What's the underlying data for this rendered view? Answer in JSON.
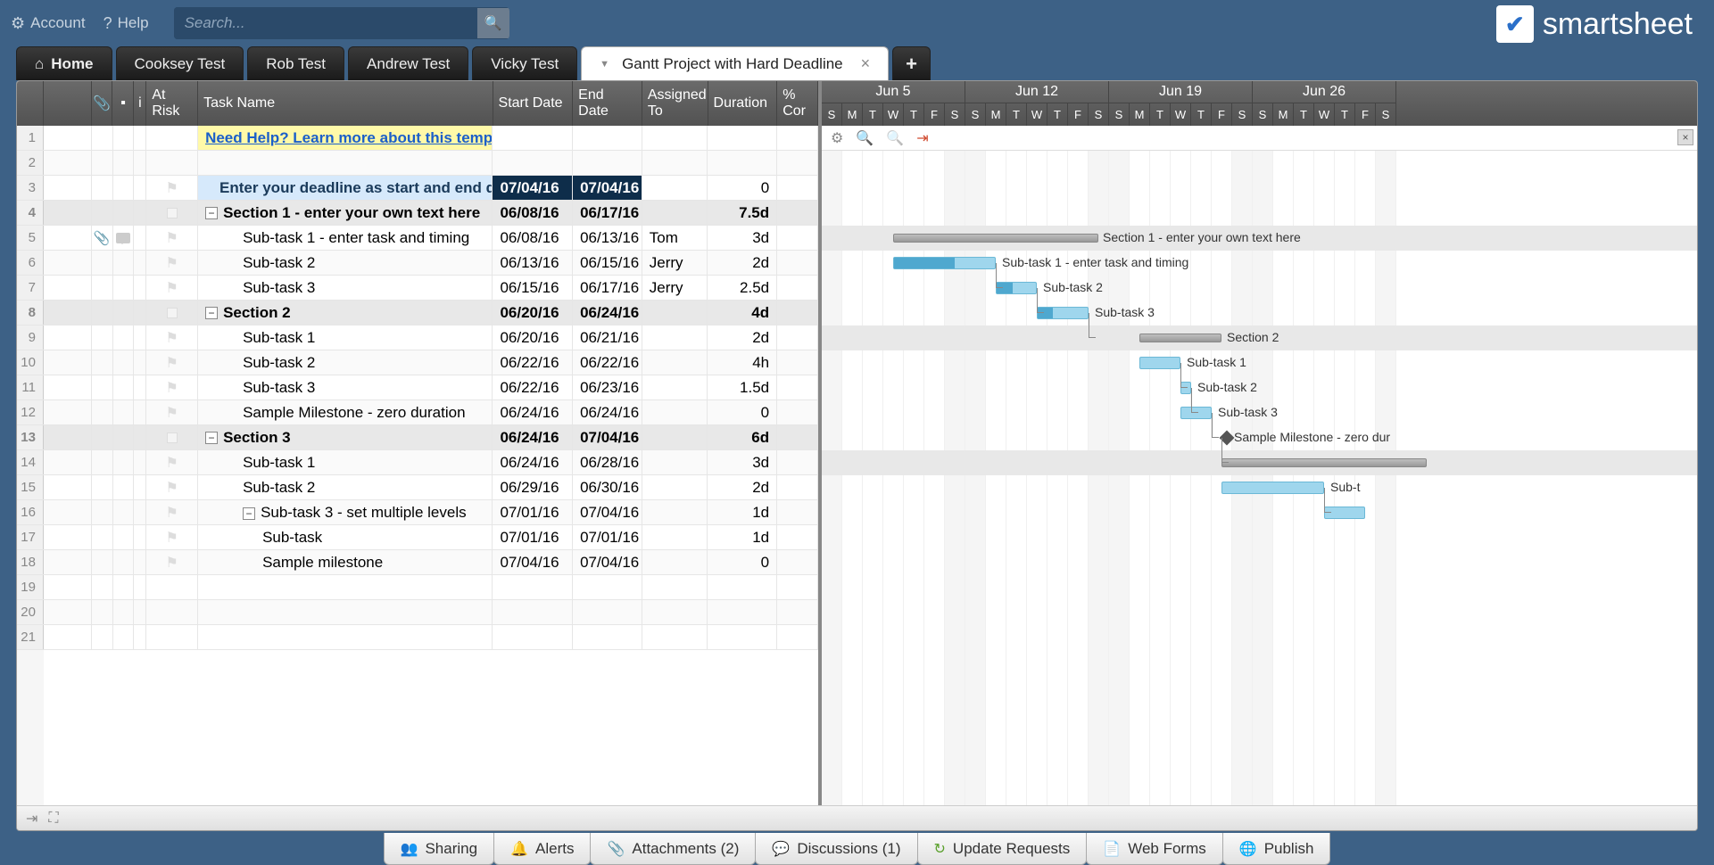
{
  "topbar": {
    "account": "Account",
    "help": "Help",
    "searchPlaceholder": "Search..."
  },
  "logo": {
    "text": "smartsheet"
  },
  "tabs": {
    "home": "Home",
    "items": [
      "Cooksey Test",
      "Rob Test",
      "Andrew Test",
      "Vicky Test"
    ],
    "active": "Gantt Project with Hard Deadline"
  },
  "columns": {
    "rowAction": "",
    "clip": "",
    "comment": "",
    "info": "i",
    "atRisk": "At Risk",
    "taskName": "Task Name",
    "startDate": "Start Date",
    "endDate": "End Date",
    "assignedTo": "Assigned To",
    "duration": "Duration",
    "complete": "% Cor"
  },
  "columnWidths": {
    "rownum": 30,
    "action": 54,
    "clip": 24,
    "comment": 24,
    "info": 14,
    "atRisk": 58,
    "taskName": 332,
    "startDate": 90,
    "endDate": 78,
    "assignedTo": 74,
    "duration": 78,
    "complete": 46
  },
  "helpRow": {
    "label": "Need Help? Learn more about this template."
  },
  "deadlineRow": {
    "label": "Enter your deadline as start and end date:",
    "start": "07/04/16",
    "end": "07/04/16",
    "duration": "0"
  },
  "rows": [
    {
      "n": 1,
      "type": "help"
    },
    {
      "n": 2,
      "type": "blank"
    },
    {
      "n": 3,
      "type": "deadline"
    },
    {
      "n": 4,
      "type": "section",
      "indent": 0,
      "task": "Section 1 - enter your own text here",
      "start": "06/08/16",
      "end": "06/17/16",
      "duration": "7.5d",
      "ganttLeft": 80,
      "ganttWidth": 230,
      "label": "Section 1 - enter your own text here",
      "labelLeft": 315
    },
    {
      "n": 5,
      "type": "task",
      "indent": 1,
      "task": "Sub-task 1 - enter task and timing",
      "start": "06/08/16",
      "end": "06/13/16",
      "assigned": "Tom",
      "duration": "3d",
      "hasClip": true,
      "hasComment": true,
      "ganttLeft": 80,
      "ganttWidth": 115,
      "prog": 60,
      "label": "Sub-task 1 - enter task and timing",
      "labelLeft": 202
    },
    {
      "n": 6,
      "type": "task",
      "indent": 1,
      "task": "Sub-task 2",
      "start": "06/13/16",
      "end": "06/15/16",
      "assigned": "Jerry",
      "duration": "2d",
      "ganttLeft": 195,
      "ganttWidth": 46,
      "prog": 40,
      "label": "Sub-task 2",
      "labelLeft": 248,
      "depFrom": 195
    },
    {
      "n": 7,
      "type": "task",
      "indent": 1,
      "task": "Sub-task 3",
      "start": "06/15/16",
      "end": "06/17/16",
      "assigned": "Jerry",
      "duration": "2.5d",
      "ganttLeft": 241,
      "ganttWidth": 58,
      "prog": 30,
      "label": "Sub-task 3",
      "labelLeft": 306,
      "depFrom": 241
    },
    {
      "n": 8,
      "type": "section",
      "indent": 0,
      "task": "Section 2",
      "start": "06/20/16",
      "end": "06/24/16",
      "duration": "4d",
      "ganttLeft": 356,
      "ganttWidth": 92,
      "label": "Section 2",
      "labelLeft": 454,
      "depFrom": 299
    },
    {
      "n": 9,
      "type": "task",
      "indent": 1,
      "task": "Sub-task 1",
      "start": "06/20/16",
      "end": "06/21/16",
      "duration": "2d",
      "ganttLeft": 356,
      "ganttWidth": 46,
      "label": "Sub-task 1",
      "labelLeft": 409
    },
    {
      "n": 10,
      "type": "task",
      "indent": 1,
      "task": "Sub-task 2",
      "start": "06/22/16",
      "end": "06/22/16",
      "duration": "4h",
      "ganttLeft": 402,
      "ganttWidth": 12,
      "label": "Sub-task 2",
      "labelLeft": 421,
      "depFrom": 402
    },
    {
      "n": 11,
      "type": "task",
      "indent": 1,
      "task": "Sub-task 3",
      "start": "06/22/16",
      "end": "06/23/16",
      "duration": "1.5d",
      "ganttLeft": 402,
      "ganttWidth": 35,
      "label": "Sub-task 3",
      "labelLeft": 444,
      "depFrom": 414
    },
    {
      "n": 12,
      "type": "task",
      "indent": 1,
      "task": "Sample Milestone - zero duration",
      "start": "06/24/16",
      "end": "06/24/16",
      "duration": "0",
      "milestone": true,
      "ganttLeft": 448,
      "label": "Sample Milestone - zero dur",
      "labelLeft": 462,
      "depFrom": 437
    },
    {
      "n": 13,
      "type": "section",
      "indent": 0,
      "task": "Section 3",
      "start": "06/24/16",
      "end": "07/04/16",
      "duration": "6d",
      "ganttLeft": 448,
      "ganttWidth": 230,
      "depFrom": 448
    },
    {
      "n": 14,
      "type": "task",
      "indent": 1,
      "task": "Sub-task 1",
      "start": "06/24/16",
      "end": "06/28/16",
      "duration": "3d",
      "ganttLeft": 448,
      "ganttWidth": 115,
      "label": "Sub-t",
      "labelLeft": 570
    },
    {
      "n": 15,
      "type": "task",
      "indent": 1,
      "task": "Sub-task 2",
      "start": "06/29/16",
      "end": "06/30/16",
      "duration": "2d",
      "ganttLeft": 563,
      "ganttWidth": 46,
      "depFrom": 563
    },
    {
      "n": 16,
      "type": "task",
      "indent": 1,
      "task": "Sub-task 3 - set multiple levels",
      "start": "07/01/16",
      "end": "07/04/16",
      "duration": "1d",
      "expandable": true
    },
    {
      "n": 17,
      "type": "task",
      "indent": 2,
      "task": "Sub-task",
      "start": "07/01/16",
      "end": "07/01/16",
      "duration": "1d"
    },
    {
      "n": 18,
      "type": "task",
      "indent": 2,
      "task": "Sample milestone",
      "start": "07/04/16",
      "end": "07/04/16",
      "duration": "0"
    },
    {
      "n": 19,
      "type": "blank"
    },
    {
      "n": 20,
      "type": "blank"
    },
    {
      "n": 21,
      "type": "blank"
    }
  ],
  "gantt": {
    "dayWidth": 23,
    "weeks": [
      "Jun 5",
      "Jun 12",
      "Jun 19",
      "Jun 26"
    ],
    "days": [
      "S",
      "M",
      "T",
      "W",
      "T",
      "F",
      "S"
    ],
    "weekendIdx": [
      0,
      6
    ]
  },
  "footerTabs": [
    {
      "icon": "👥",
      "label": "Sharing",
      "color": "#2a7de1"
    },
    {
      "icon": "🔔",
      "label": "Alerts",
      "color": "#e6b800"
    },
    {
      "icon": "📎",
      "label": "Attachments  (2)",
      "color": "#888"
    },
    {
      "icon": "💬",
      "label": "Discussions  (1)",
      "color": "#888"
    },
    {
      "icon": "↻",
      "label": "Update Requests",
      "color": "#5aa02c"
    },
    {
      "icon": "📄",
      "label": "Web Forms",
      "color": "#888"
    },
    {
      "icon": "🌐",
      "label": "Publish",
      "color": "#2a7de1"
    }
  ]
}
